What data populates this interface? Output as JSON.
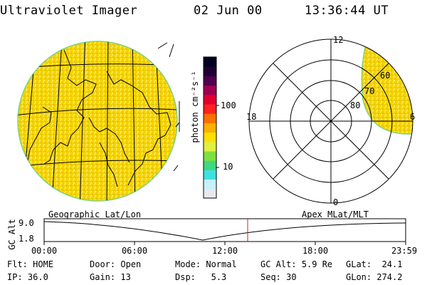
{
  "header": {
    "title": "Ultraviolet Imager",
    "date": "02 Jun 00",
    "time": "13:36:44 UT"
  },
  "colorbar": {
    "unit_label": "photon cm⁻²s⁻¹",
    "ticks": [
      "100",
      "10"
    ],
    "colors": [
      "#e8e8f0",
      "#c8f0f8",
      "#40e0e0",
      "#40d880",
      "#80e040",
      "#e0f040",
      "#ffe000",
      "#ffb000",
      "#ff7000",
      "#ff2020",
      "#e00030",
      "#a00050",
      "#500050",
      "#200030",
      "#000020"
    ]
  },
  "polar": {
    "labels": {
      "top": "12",
      "left": "18",
      "right": "6",
      "bottom": "0"
    },
    "rings": [
      "80",
      "70",
      "60"
    ]
  },
  "map_label_left": "Geographic Lat/Lon",
  "map_label_right": "Apex MLat/MLT",
  "timeline": {
    "y_axis_label": "GC Alt",
    "y_ticks": [
      "9.0",
      "1.8"
    ],
    "x_ticks": [
      "00:00",
      "06:00",
      "12:00",
      "18:00",
      "23:59"
    ],
    "marker_time": "13:36"
  },
  "status": {
    "flt_label": "Flt:",
    "flt_value": "HOME",
    "ip_label": "IP:",
    "ip_value": "36.0",
    "door_label": "Door:",
    "door_value": "Open",
    "gain_label": "Gain:",
    "gain_value": "13",
    "mode_label": "Mode:",
    "mode_value": "Normal",
    "dsp_label": "Dsp:",
    "dsp_value": "5.3",
    "gcalt_label": "GC Alt:",
    "gcalt_value": "5.9 Re",
    "seq_label": "Seq:",
    "seq_value": "30",
    "glat_label": "GLat:",
    "glat_value": "24.1",
    "glon_label": "GLon:",
    "glon_value": "274.2"
  },
  "image_fill_color": "#f2d200",
  "limb_color": "#7fd27f"
}
